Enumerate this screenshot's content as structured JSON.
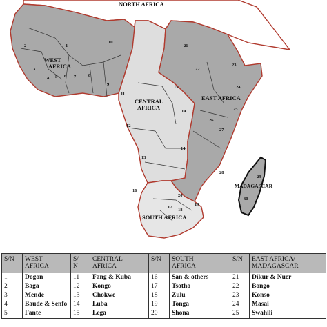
{
  "map": {
    "regions": [
      {
        "id": "north-africa",
        "label": "NORTH AFRICA",
        "fill": "#ffffff"
      },
      {
        "id": "west-africa",
        "label": "WEST\nAFRICA",
        "fill": "#a9a9a9"
      },
      {
        "id": "central-africa",
        "label": "CENTRAL\nAFRICA",
        "fill": "#dedede"
      },
      {
        "id": "east-africa",
        "label": "EAST AFRICA",
        "fill": "#a9a9a9"
      },
      {
        "id": "south-africa",
        "label": "SOUTH AFRICA",
        "fill": "#e6e6e6"
      },
      {
        "id": "madagascar",
        "label": "MADAGASCAR",
        "fill": "#a9a9a9"
      }
    ],
    "border_color": "#c0392b",
    "numbers": [
      "1",
      "2",
      "3",
      "4",
      "5",
      "6",
      "7",
      "8",
      "9",
      "10",
      "11",
      "12",
      "13",
      "14",
      "15",
      "16",
      "17",
      "18",
      "19",
      "20",
      "21",
      "22",
      "23",
      "24",
      "25",
      "26",
      "27",
      "28",
      "29",
      "30"
    ]
  },
  "table": {
    "headers": [
      "S/N",
      "WEST\nAFRICA",
      "S/\nN",
      "CENTRAL\nAFRICA",
      "S/N",
      "SOUTH\nAFRICA",
      "S/N",
      "EAST AFRICA/\nMADAGASCAR"
    ],
    "rows": [
      [
        "1",
        "Dogon",
        "11",
        "Fang & Kuba",
        "16",
        "San & others",
        "21",
        "Dikur & Nuer"
      ],
      [
        "2",
        "Baga",
        "12",
        "Kongo",
        "17",
        "Tsotho",
        "22",
        "Bongo"
      ],
      [
        "3",
        "Mende",
        "13",
        "Chokwe",
        "18",
        "Zulu",
        "23",
        "Konso"
      ],
      [
        "4",
        "Baude & Senfo",
        "14",
        "Luba",
        "19",
        "Tonga",
        "24",
        "Masai"
      ],
      [
        "5",
        "Fante",
        "15",
        "Lega",
        "20",
        "Shona",
        "25",
        "Swahili"
      ]
    ]
  }
}
